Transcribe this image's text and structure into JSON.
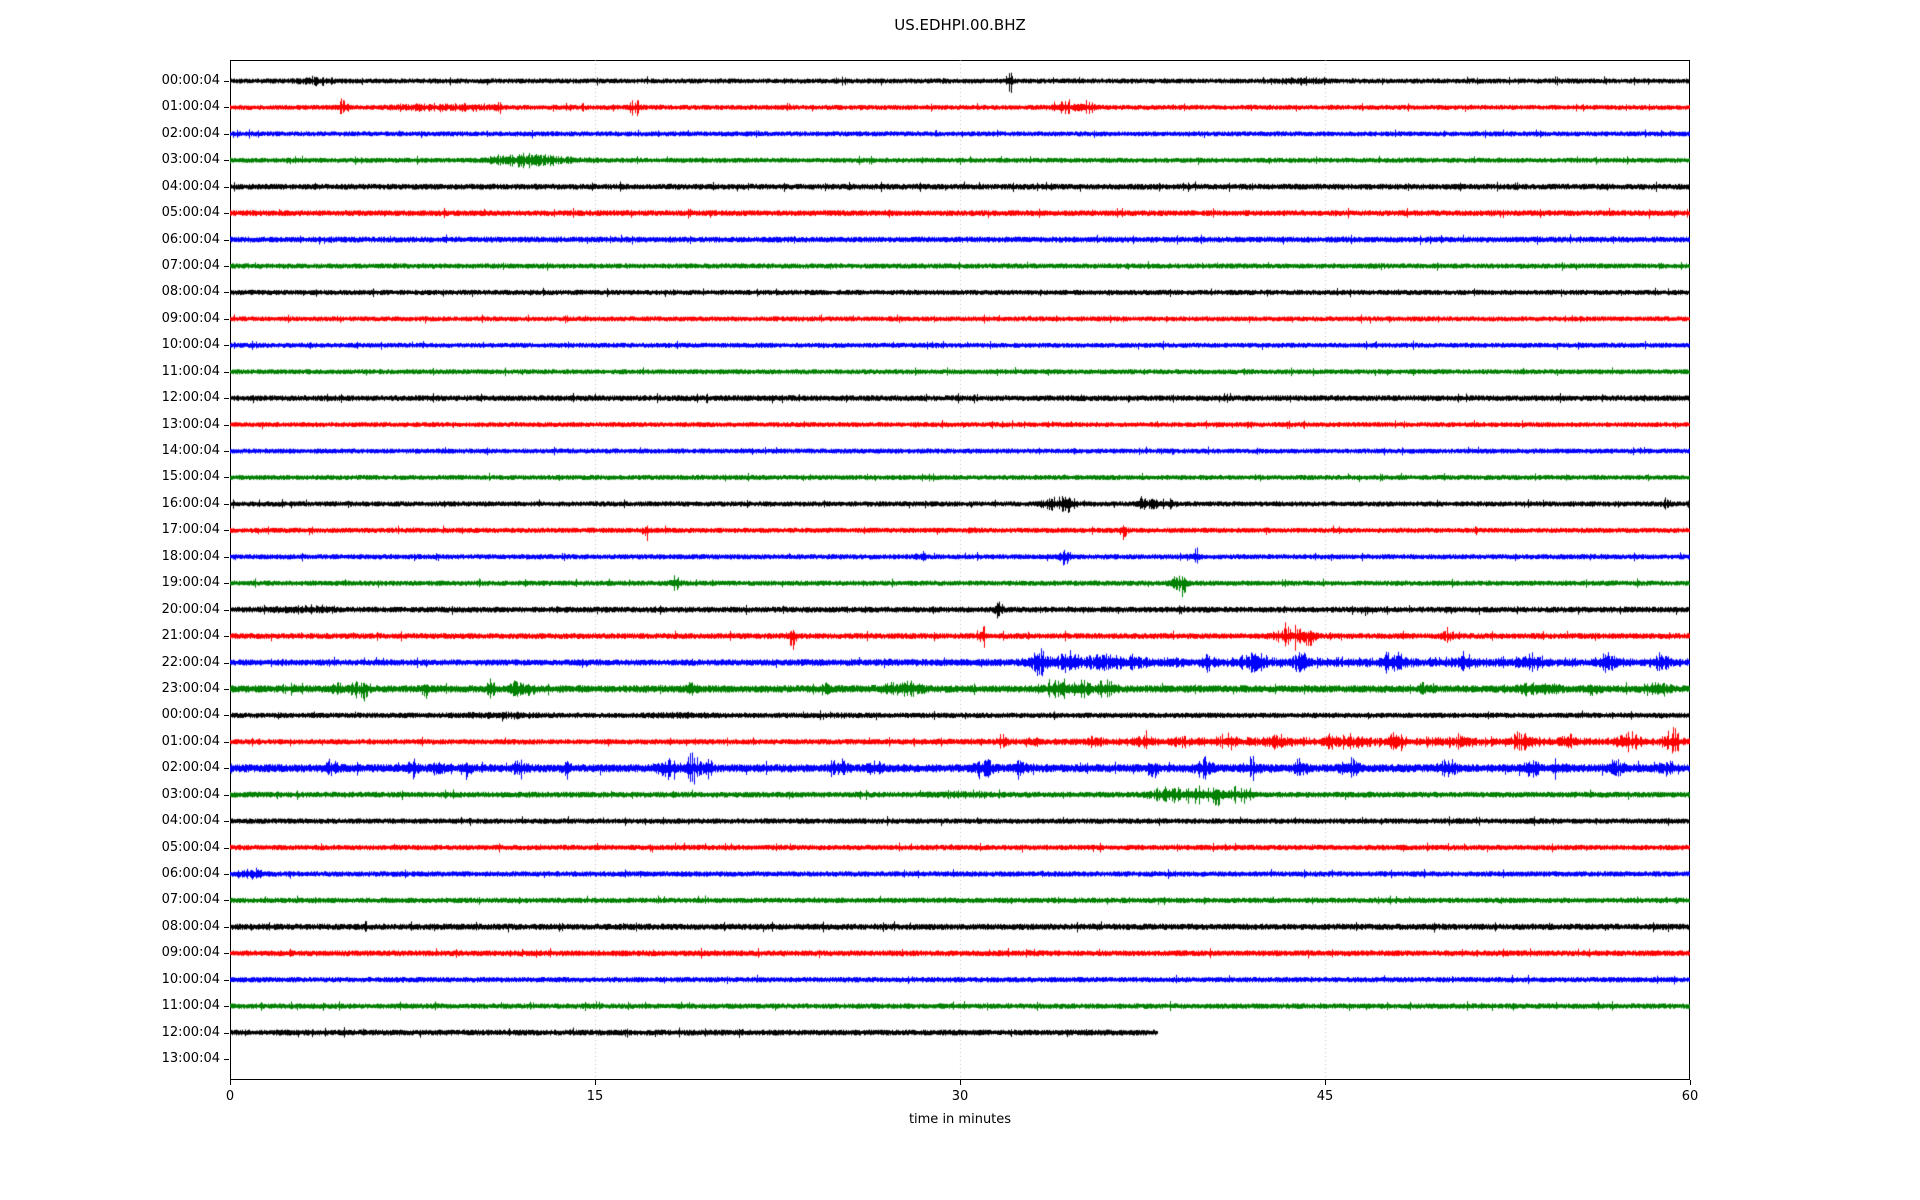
{
  "title": "US.EDHPI.00.BHZ",
  "xlabel": "time in minutes",
  "chart_data": {
    "type": "line",
    "subtype": "helicorder-dayplot",
    "title": "US.EDHPI.00.BHZ",
    "xlabel": "time in minutes",
    "x_range_minutes": [
      0,
      60
    ],
    "x_ticks": [
      0,
      15,
      30,
      45,
      60
    ],
    "grid_minutes": [
      15,
      30,
      45
    ],
    "grid_color": "#b3b3b3",
    "axis_color": "#000000",
    "background": "#ffffff",
    "color_cycle": [
      "#000000",
      "#ff0000",
      "#0000ff",
      "#008000"
    ],
    "rows": [
      {
        "label": "00:00:04",
        "color": "#000000",
        "noise": 2.6,
        "coverage": 1,
        "events": [
          {
            "t": 3.5,
            "a": 3,
            "w": 1.2
          },
          {
            "t": 32.0,
            "a": 11,
            "w": 0.25
          },
          {
            "t": 44,
            "a": 2.5,
            "w": 1.5
          }
        ]
      },
      {
        "label": "01:00:04",
        "color": "#ff0000",
        "noise": 2.6,
        "coverage": 1,
        "events": [
          {
            "t": 4.6,
            "a": 8,
            "w": 0.35
          },
          {
            "t": 8.8,
            "a": 2.5,
            "w": 3
          },
          {
            "t": 11,
            "a": 5,
            "w": 0.2
          },
          {
            "t": 16.6,
            "a": 7,
            "w": 0.4
          },
          {
            "t": 34.3,
            "a": 5,
            "w": 0.8
          },
          {
            "t": 35.2,
            "a": 4,
            "w": 0.5
          }
        ]
      },
      {
        "label": "02:00:04",
        "color": "#0000ff",
        "noise": 2.6,
        "coverage": 1,
        "events": []
      },
      {
        "label": "03:00:04",
        "color": "#008000",
        "noise": 2.6,
        "coverage": 1,
        "events": [
          {
            "t": 12,
            "a": 5,
            "w": 1.6
          },
          {
            "t": 12.6,
            "a": 3,
            "w": 3
          }
        ]
      },
      {
        "label": "04:00:04",
        "color": "#000000",
        "noise": 3.0,
        "coverage": 1,
        "events": []
      },
      {
        "label": "05:00:04",
        "color": "#ff0000",
        "noise": 3.0,
        "coverage": 1,
        "events": []
      },
      {
        "label": "06:00:04",
        "color": "#0000ff",
        "noise": 3.0,
        "coverage": 1,
        "events": []
      },
      {
        "label": "07:00:04",
        "color": "#008000",
        "noise": 2.7,
        "coverage": 1,
        "events": []
      },
      {
        "label": "08:00:04",
        "color": "#000000",
        "noise": 2.7,
        "coverage": 1,
        "events": []
      },
      {
        "label": "09:00:04",
        "color": "#ff0000",
        "noise": 2.6,
        "coverage": 1,
        "events": []
      },
      {
        "label": "10:00:04",
        "color": "#0000ff",
        "noise": 2.6,
        "coverage": 1,
        "events": []
      },
      {
        "label": "11:00:04",
        "color": "#008000",
        "noise": 2.6,
        "coverage": 1,
        "events": []
      },
      {
        "label": "12:00:04",
        "color": "#000000",
        "noise": 3.0,
        "coverage": 1,
        "events": []
      },
      {
        "label": "13:00:04",
        "color": "#ff0000",
        "noise": 2.6,
        "coverage": 1,
        "events": []
      },
      {
        "label": "14:00:04",
        "color": "#0000ff",
        "noise": 2.6,
        "coverage": 1,
        "events": []
      },
      {
        "label": "15:00:04",
        "color": "#008000",
        "noise": 2.6,
        "coverage": 1,
        "events": []
      },
      {
        "label": "16:00:04",
        "color": "#000000",
        "noise": 2.7,
        "coverage": 1,
        "events": [
          {
            "t": 33.9,
            "a": 8,
            "w": 0.7
          },
          {
            "t": 34.5,
            "a": 6,
            "w": 0.4
          },
          {
            "t": 37.6,
            "a": 7,
            "w": 0.5
          },
          {
            "t": 38.3,
            "a": 6,
            "w": 0.6
          },
          {
            "t": 59,
            "a": 4,
            "w": 0.3
          }
        ]
      },
      {
        "label": "17:00:04",
        "color": "#ff0000",
        "noise": 2.7,
        "coverage": 1,
        "events": [
          {
            "t": 17.1,
            "a": 9,
            "w": 0.2,
            "dir": -1
          },
          {
            "t": 30.5,
            "a": 3,
            "w": 0.3
          },
          {
            "t": 36.7,
            "a": 8,
            "w": 0.2,
            "dir": -1
          }
        ]
      },
      {
        "label": "18:00:04",
        "color": "#0000ff",
        "noise": 2.7,
        "coverage": 1,
        "events": [
          {
            "t": 28.4,
            "a": 4,
            "w": 0.25
          },
          {
            "t": 34.3,
            "a": 11,
            "w": 0.25
          },
          {
            "t": 39.7,
            "a": 9,
            "w": 0.25
          }
        ]
      },
      {
        "label": "19:00:04",
        "color": "#008000",
        "noise": 2.7,
        "coverage": 1,
        "events": [
          {
            "t": 18.3,
            "a": 5,
            "w": 0.3
          },
          {
            "t": 38.9,
            "a": 9,
            "w": 0.4
          },
          {
            "t": 39.2,
            "a": 8,
            "w": 0.25,
            "dir": -1
          }
        ]
      },
      {
        "label": "20:00:04",
        "color": "#000000",
        "noise": 3.0,
        "coverage": 1,
        "events": [
          {
            "t": 3,
            "a": 2,
            "w": 2
          },
          {
            "t": 31.6,
            "a": 12,
            "w": 0.25
          },
          {
            "t": 46.7,
            "a": 5,
            "w": 0.4,
            "dir": -1
          }
        ]
      },
      {
        "label": "21:00:04",
        "color": "#ff0000",
        "noise": 3.0,
        "coverage": 1,
        "events": [
          {
            "t": 23.1,
            "a": 12,
            "w": 0.2,
            "dir": -1
          },
          {
            "t": 30.9,
            "a": 13,
            "w": 0.22
          },
          {
            "t": 43.6,
            "a": 12,
            "w": 0.9
          },
          {
            "t": 44.3,
            "a": 8,
            "w": 0.5,
            "dir": -1
          },
          {
            "t": 50,
            "a": 4,
            "w": 0.4
          }
        ]
      },
      {
        "label": "22:00:04",
        "color": "#0000ff",
        "noise": 3.2,
        "coverage": 1,
        "events": [
          {
            "t": 14.5,
            "a": 5,
            "w": 0.2,
            "dir": -1
          },
          {
            "t": 33.3,
            "a": 9,
            "w": 0.6
          },
          {
            "t": 34.4,
            "a": 8,
            "w": 0.5
          },
          {
            "t": 36,
            "a": 5,
            "w": 3
          },
          {
            "t": 40.2,
            "a": 7,
            "w": 0.4
          },
          {
            "t": 42,
            "a": 6,
            "w": 0.8
          },
          {
            "t": 44,
            "a": 7,
            "w": 0.5
          },
          {
            "t": 46,
            "a": 2.5,
            "w": 26
          },
          {
            "t": 47.8,
            "a": 8,
            "w": 0.7
          },
          {
            "t": 50.8,
            "a": 7,
            "w": 0.4
          },
          {
            "t": 53.4,
            "a": 7,
            "w": 0.8
          },
          {
            "t": 56.6,
            "a": 6,
            "w": 0.6
          },
          {
            "t": 58.8,
            "a": 6,
            "w": 0.5
          }
        ]
      },
      {
        "label": "23:00:04",
        "color": "#008000",
        "noise": 3.8,
        "coverage": 1,
        "events": [
          {
            "t": 4.8,
            "a": 4,
            "w": 1
          },
          {
            "t": 5.5,
            "a": 15,
            "w": 0.2,
            "dir": -1
          },
          {
            "t": 8,
            "a": 6,
            "w": 0.3,
            "dir": -1
          },
          {
            "t": 10.7,
            "a": 11,
            "w": 0.25
          },
          {
            "t": 11.8,
            "a": 9,
            "w": 0.4
          },
          {
            "t": 12.3,
            "a": 7,
            "w": 0.3,
            "dir": -1
          },
          {
            "t": 19,
            "a": 4,
            "w": 0.3
          },
          {
            "t": 24.5,
            "a": 5,
            "w": 0.3
          },
          {
            "t": 27.7,
            "a": 6,
            "w": 1.2
          },
          {
            "t": 34,
            "a": 8,
            "w": 0.8
          },
          {
            "t": 35,
            "a": 9,
            "w": 0.5
          },
          {
            "t": 36,
            "a": 6,
            "w": 0.6
          },
          {
            "t": 49.2,
            "a": 8,
            "w": 0.4
          },
          {
            "t": 53.8,
            "a": 7,
            "w": 1
          },
          {
            "t": 56,
            "a": 6,
            "w": 0.4,
            "dir": -1
          },
          {
            "t": 58.6,
            "a": 5,
            "w": 0.8
          }
        ]
      },
      {
        "label": "00:00:04",
        "color": "#000000",
        "noise": 2.8,
        "coverage": 1,
        "events": [
          {
            "t": 11,
            "a": 1.5,
            "w": 3
          },
          {
            "t": 18.5,
            "a": 1.5,
            "w": 2
          }
        ]
      },
      {
        "label": "01:00:04",
        "color": "#ff0000",
        "noise": 2.8,
        "coverage": 1,
        "events": [
          {
            "t": 31.7,
            "a": 7,
            "w": 0.3
          },
          {
            "t": 33,
            "a": 4,
            "w": 0.4
          },
          {
            "t": 35.5,
            "a": 4,
            "w": 0.5
          },
          {
            "t": 37.6,
            "a": 7,
            "w": 0.5
          },
          {
            "t": 39,
            "a": 5,
            "w": 0.5
          },
          {
            "t": 41,
            "a": 8,
            "w": 0.5
          },
          {
            "t": 43,
            "a": 5,
            "w": 0.6
          },
          {
            "t": 45.4,
            "a": 8,
            "w": 0.6
          },
          {
            "t": 46.2,
            "a": 6,
            "w": 0.4
          },
          {
            "t": 48,
            "a": 8,
            "w": 0.5
          },
          {
            "t": 48,
            "a": 2.5,
            "w": 24
          },
          {
            "t": 50.5,
            "a": 6,
            "w": 0.6
          },
          {
            "t": 53,
            "a": 7,
            "w": 0.6
          },
          {
            "t": 55,
            "a": 5,
            "w": 0.5
          },
          {
            "t": 57.5,
            "a": 9,
            "w": 0.6
          },
          {
            "t": 59.3,
            "a": 9,
            "w": 0.6
          }
        ]
      },
      {
        "label": "02:00:04",
        "color": "#0000ff",
        "noise": 4.2,
        "coverage": 1,
        "events": [
          {
            "t": 4.2,
            "a": 6,
            "w": 0.4
          },
          {
            "t": 7.5,
            "a": 10,
            "w": 0.3
          },
          {
            "t": 8.5,
            "a": 7,
            "w": 0.4,
            "dir": -1
          },
          {
            "t": 9.7,
            "a": 12,
            "w": 0.25,
            "dir": -1
          },
          {
            "t": 11.9,
            "a": 8,
            "w": 0.4
          },
          {
            "t": 13.8,
            "a": 8,
            "w": 0.3
          },
          {
            "t": 18,
            "a": 10,
            "w": 0.6
          },
          {
            "t": 19,
            "a": 13,
            "w": 0.4
          },
          {
            "t": 19.6,
            "a": 10,
            "w": 0.3
          },
          {
            "t": 25,
            "a": 8,
            "w": 0.5
          },
          {
            "t": 26.5,
            "a": 7,
            "w": 0.4
          },
          {
            "t": 31,
            "a": 8,
            "w": 0.6
          },
          {
            "t": 32.5,
            "a": 7,
            "w": 0.4
          },
          {
            "t": 37.9,
            "a": 16,
            "w": 0.25,
            "dir": -1
          },
          {
            "t": 40,
            "a": 9,
            "w": 0.5
          },
          {
            "t": 42,
            "a": 8,
            "w": 0.5
          },
          {
            "t": 44,
            "a": 6,
            "w": 0.5
          },
          {
            "t": 46,
            "a": 8,
            "w": 0.5
          },
          {
            "t": 50,
            "a": 8,
            "w": 0.5
          },
          {
            "t": 53.5,
            "a": 9,
            "w": 0.5
          },
          {
            "t": 54.6,
            "a": 8,
            "w": 0.4
          },
          {
            "t": 57,
            "a": 6,
            "w": 0.5
          },
          {
            "t": 59,
            "a": 6,
            "w": 0.4
          }
        ]
      },
      {
        "label": "03:00:04",
        "color": "#008000",
        "noise": 3.0,
        "coverage": 1,
        "events": [
          {
            "t": 30,
            "a": 2,
            "w": 2
          },
          {
            "t": 38.5,
            "a": 6,
            "w": 1
          },
          {
            "t": 39.8,
            "a": 8,
            "w": 1.2
          },
          {
            "t": 40.6,
            "a": 11,
            "w": 0.3,
            "dir": -1
          },
          {
            "t": 41.5,
            "a": 6,
            "w": 0.8
          }
        ]
      },
      {
        "label": "04:00:04",
        "color": "#000000",
        "noise": 2.8,
        "coverage": 1,
        "events": [
          {
            "t": 53.5,
            "a": 5,
            "w": 0.2
          }
        ]
      },
      {
        "label": "05:00:04",
        "color": "#ff0000",
        "noise": 2.8,
        "coverage": 1,
        "events": []
      },
      {
        "label": "06:00:04",
        "color": "#0000ff",
        "noise": 2.8,
        "coverage": 1,
        "events": [
          {
            "t": 1,
            "a": 3,
            "w": 0.8
          }
        ]
      },
      {
        "label": "07:00:04",
        "color": "#008000",
        "noise": 2.8,
        "coverage": 1,
        "events": []
      },
      {
        "label": "08:00:04",
        "color": "#000000",
        "noise": 3.2,
        "coverage": 1,
        "events": []
      },
      {
        "label": "09:00:04",
        "color": "#ff0000",
        "noise": 3.0,
        "coverage": 1,
        "events": []
      },
      {
        "label": "10:00:04",
        "color": "#0000ff",
        "noise": 2.8,
        "coverage": 1,
        "events": []
      },
      {
        "label": "11:00:04",
        "color": "#008000",
        "noise": 2.8,
        "coverage": 1,
        "events": []
      },
      {
        "label": "12:00:04",
        "color": "#000000",
        "noise": 3.0,
        "coverage": 0.635,
        "events": []
      },
      {
        "label": "13:00:04",
        "color": "#ff0000",
        "noise": 0,
        "coverage": 0,
        "events": []
      }
    ]
  }
}
